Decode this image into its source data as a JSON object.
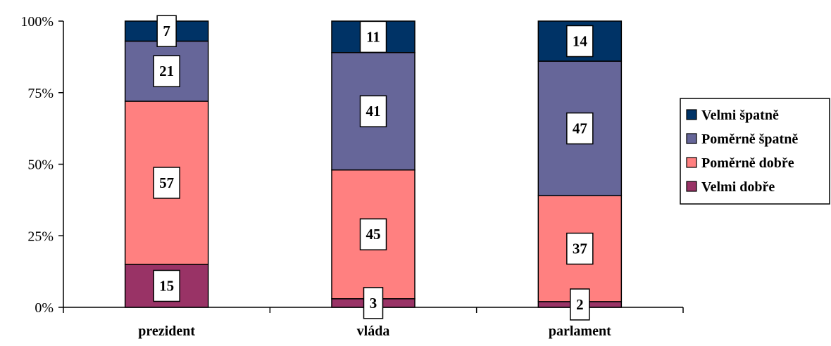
{
  "chart_data": {
    "type": "bar",
    "stacked": true,
    "normalized_percent": true,
    "categories": [
      "prezident",
      "vláda",
      "parlament"
    ],
    "series": [
      {
        "name": "Velmi dobře",
        "color": "#993366",
        "values": [
          15,
          3,
          2
        ]
      },
      {
        "name": "Poměrně dobře",
        "color": "#FF8080",
        "values": [
          57,
          45,
          37
        ]
      },
      {
        "name": "Poměrně špatně",
        "color": "#666699",
        "values": [
          21,
          41,
          47
        ]
      },
      {
        "name": "Velmi špatně",
        "color": "#003366",
        "values": [
          7,
          11,
          14
        ]
      }
    ],
    "y_ticks": [
      "0%",
      "25%",
      "50%",
      "75%",
      "100%"
    ],
    "ylim": [
      0,
      100
    ],
    "legend_order": [
      "Velmi špatně",
      "Poměrně špatně",
      "Poměrně dobře",
      "Velmi dobře"
    ],
    "legend_position": "right",
    "grid": false
  }
}
